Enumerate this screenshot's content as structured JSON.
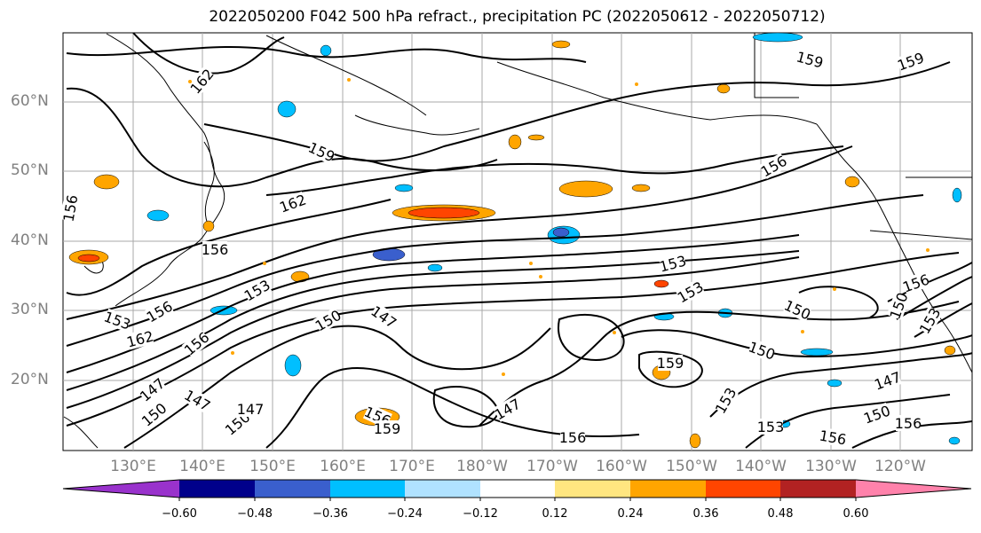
{
  "title": "2022050200 F042 500 hPa refract., precipitation PC (2022050612 - 2022050712)",
  "lat_labels": [
    "60°N",
    "50°N",
    "40°N",
    "30°N",
    "20°N"
  ],
  "lon_labels": [
    "130°E",
    "140°E",
    "150°E",
    "160°E",
    "170°E",
    "180°W",
    "170°W",
    "160°W",
    "150°W",
    "140°W",
    "130°W",
    "120°W"
  ],
  "contour_labels": [
    "162",
    "159",
    "156",
    "162",
    "156",
    "153",
    "156",
    "153",
    "162",
    "156",
    "150",
    "147",
    "147",
    "150",
    "147",
    "150",
    "147",
    "156",
    "159",
    "147",
    "156",
    "153",
    "153",
    "150",
    "159",
    "153",
    "156",
    "153",
    "159",
    "150",
    "147",
    "156",
    "150",
    "156",
    "159",
    "150",
    "153",
    "156"
  ],
  "colorbar": {
    "ticks": [
      "−0.60",
      "−0.48",
      "−0.36",
      "−0.24",
      "−0.12",
      "0.12",
      "0.24",
      "0.36",
      "0.48",
      "0.60"
    ],
    "colors": [
      "#9932cc",
      "#00008b",
      "#3a5fcd",
      "#00bfff",
      "#b0e2ff",
      "#ffffff",
      "#ffe680",
      "#ffa500",
      "#ff4500",
      "#b22222",
      "#ff82ab"
    ]
  }
}
